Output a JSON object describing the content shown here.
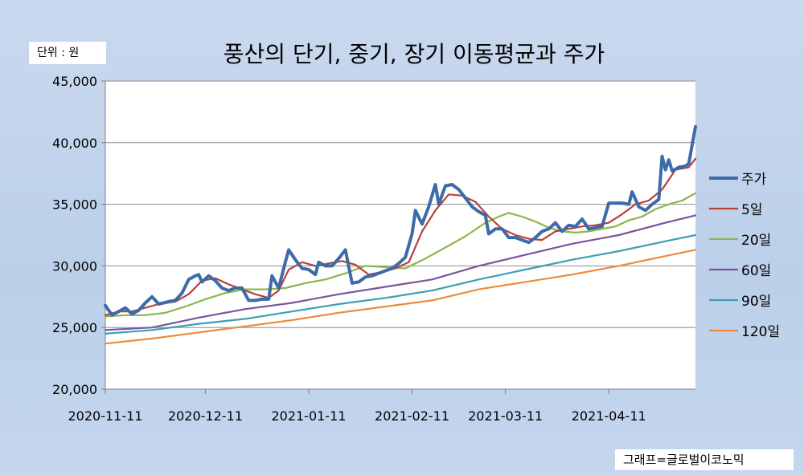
{
  "unit_label": "단위 : 원",
  "source_label": "그래프=글로벌이코노믹",
  "colors": {
    "price": "#3c6ba8",
    "ma5": "#b8403c",
    "ma20": "#8db54a",
    "ma60": "#7a55a0",
    "ma90": "#3d9fb4",
    "ma120": "#ec8b3a"
  },
  "chart_data": {
    "type": "line",
    "title": "풍산의 단기, 중기, 장기 이동평균과 주가",
    "xlabel": "",
    "ylabel": "",
    "ylim": [
      20000,
      45000
    ],
    "yticks": [
      20000,
      25000,
      30000,
      35000,
      40000,
      45000
    ],
    "ytick_labels": [
      "20,000",
      "25,000",
      "30,000",
      "35,000",
      "40,000",
      "45,000"
    ],
    "xticks": [
      "2020-11-11",
      "2020-12-11",
      "2021-01-11",
      "2021-02-11",
      "2021-03-11",
      "2021-04-11"
    ],
    "xlim": [
      "2020-11-11",
      "2021-05-07"
    ],
    "grid": "horizontal",
    "legend_position": "right",
    "series": [
      {
        "name": "주가",
        "key": "price",
        "points": [
          [
            "2020-11-11",
            26800
          ],
          [
            "2020-11-13",
            26000
          ],
          [
            "2020-11-15",
            26300
          ],
          [
            "2020-11-17",
            26600
          ],
          [
            "2020-11-19",
            26100
          ],
          [
            "2020-11-21",
            26400
          ],
          [
            "2020-11-23",
            27000
          ],
          [
            "2020-11-25",
            27500
          ],
          [
            "2020-11-27",
            26900
          ],
          [
            "2020-11-30",
            27100
          ],
          [
            "2020-12-02",
            27200
          ],
          [
            "2020-12-04",
            27800
          ],
          [
            "2020-12-06",
            28900
          ],
          [
            "2020-12-08",
            29200
          ],
          [
            "2020-12-09",
            29300
          ],
          [
            "2020-12-10",
            28700
          ],
          [
            "2020-12-12",
            29200
          ],
          [
            "2020-12-14",
            28800
          ],
          [
            "2020-12-16",
            28200
          ],
          [
            "2020-12-18",
            28000
          ],
          [
            "2020-12-20",
            28200
          ],
          [
            "2020-12-22",
            28200
          ],
          [
            "2020-12-24",
            27200
          ],
          [
            "2020-12-26",
            27200
          ],
          [
            "2020-12-28",
            27300
          ],
          [
            "2020-12-30",
            27300
          ],
          [
            "2020-12-31",
            29200
          ],
          [
            "2021-01-02",
            28200
          ],
          [
            "2021-01-04",
            30300
          ],
          [
            "2021-01-05",
            31300
          ],
          [
            "2021-01-07",
            30500
          ],
          [
            "2021-01-09",
            29800
          ],
          [
            "2021-01-11",
            29700
          ],
          [
            "2021-01-13",
            29300
          ],
          [
            "2021-01-14",
            30300
          ],
          [
            "2021-01-16",
            30000
          ],
          [
            "2021-01-18",
            30000
          ],
          [
            "2021-01-20",
            30600
          ],
          [
            "2021-01-22",
            31300
          ],
          [
            "2021-01-24",
            28600
          ],
          [
            "2021-01-26",
            28700
          ],
          [
            "2021-01-28",
            29100
          ],
          [
            "2021-01-30",
            29200
          ],
          [
            "2021-02-01",
            29400
          ],
          [
            "2021-02-03",
            29600
          ],
          [
            "2021-02-05",
            29800
          ],
          [
            "2021-02-07",
            30200
          ],
          [
            "2021-02-09",
            30700
          ],
          [
            "2021-02-11",
            32600
          ],
          [
            "2021-02-12",
            34500
          ],
          [
            "2021-02-14",
            33400
          ],
          [
            "2021-02-16",
            34800
          ],
          [
            "2021-02-18",
            36600
          ],
          [
            "2021-02-19",
            35000
          ],
          [
            "2021-02-21",
            36500
          ],
          [
            "2021-02-23",
            36600
          ],
          [
            "2021-02-25",
            36200
          ],
          [
            "2021-02-27",
            35500
          ],
          [
            "2021-03-01",
            34800
          ],
          [
            "2021-03-03",
            34400
          ],
          [
            "2021-03-05",
            34100
          ],
          [
            "2021-03-06",
            32600
          ],
          [
            "2021-03-08",
            33000
          ],
          [
            "2021-03-10",
            33000
          ],
          [
            "2021-03-12",
            32300
          ],
          [
            "2021-03-14",
            32300
          ],
          [
            "2021-03-16",
            32100
          ],
          [
            "2021-03-18",
            31900
          ],
          [
            "2021-03-20",
            32300
          ],
          [
            "2021-03-22",
            32800
          ],
          [
            "2021-03-24",
            33000
          ],
          [
            "2021-03-26",
            33500
          ],
          [
            "2021-03-28",
            32800
          ],
          [
            "2021-03-30",
            33300
          ],
          [
            "2021-04-01",
            33200
          ],
          [
            "2021-04-03",
            33800
          ],
          [
            "2021-04-05",
            33000
          ],
          [
            "2021-04-07",
            33100
          ],
          [
            "2021-04-09",
            33200
          ],
          [
            "2021-04-11",
            35100
          ],
          [
            "2021-04-13",
            35100
          ],
          [
            "2021-04-15",
            35100
          ],
          [
            "2021-04-17",
            35000
          ],
          [
            "2021-04-18",
            36000
          ],
          [
            "2021-04-20",
            34800
          ],
          [
            "2021-04-22",
            34500
          ],
          [
            "2021-04-24",
            35000
          ],
          [
            "2021-04-26",
            35400
          ],
          [
            "2021-04-27",
            38900
          ],
          [
            "2021-04-28",
            37800
          ],
          [
            "2021-04-29",
            38600
          ],
          [
            "2021-04-30",
            37700
          ],
          [
            "2021-05-02",
            38000
          ],
          [
            "2021-05-04",
            38100
          ],
          [
            "2021-05-05",
            38300
          ],
          [
            "2021-05-07",
            41300
          ]
        ]
      },
      {
        "name": "5일",
        "key": "ma5",
        "points": [
          [
            "2020-11-11",
            26000
          ],
          [
            "2020-11-15",
            26300
          ],
          [
            "2020-11-19",
            26300
          ],
          [
            "2020-11-23",
            26600
          ],
          [
            "2020-11-27",
            26900
          ],
          [
            "2020-12-02",
            27100
          ],
          [
            "2020-12-06",
            27700
          ],
          [
            "2020-12-10",
            28800
          ],
          [
            "2020-12-14",
            29000
          ],
          [
            "2020-12-18",
            28500
          ],
          [
            "2020-12-22",
            28100
          ],
          [
            "2020-12-26",
            27700
          ],
          [
            "2020-12-30",
            27400
          ],
          [
            "2021-01-02",
            28000
          ],
          [
            "2021-01-05",
            29700
          ],
          [
            "2021-01-09",
            30300
          ],
          [
            "2021-01-13",
            30000
          ],
          [
            "2021-01-17",
            30200
          ],
          [
            "2021-01-21",
            30400
          ],
          [
            "2021-01-25",
            30100
          ],
          [
            "2021-01-29",
            29300
          ],
          [
            "2021-02-02",
            29500
          ],
          [
            "2021-02-06",
            29800
          ],
          [
            "2021-02-10",
            30300
          ],
          [
            "2021-02-14",
            32800
          ],
          [
            "2021-02-18",
            34500
          ],
          [
            "2021-02-22",
            35800
          ],
          [
            "2021-02-26",
            35700
          ],
          [
            "2021-03-02",
            35200
          ],
          [
            "2021-03-06",
            34000
          ],
          [
            "2021-03-10",
            33000
          ],
          [
            "2021-03-14",
            32500
          ],
          [
            "2021-03-18",
            32200
          ],
          [
            "2021-03-22",
            32100
          ],
          [
            "2021-03-26",
            32800
          ],
          [
            "2021-03-30",
            33000
          ],
          [
            "2021-04-03",
            33200
          ],
          [
            "2021-04-07",
            33300
          ],
          [
            "2021-04-11",
            33500
          ],
          [
            "2021-04-15",
            34200
          ],
          [
            "2021-04-19",
            35000
          ],
          [
            "2021-04-23",
            35300
          ],
          [
            "2021-04-27",
            36200
          ],
          [
            "2021-05-01",
            37800
          ],
          [
            "2021-05-05",
            38000
          ],
          [
            "2021-05-07",
            38700
          ]
        ]
      },
      {
        "name": "20일",
        "key": "ma20",
        "points": [
          [
            "2020-11-11",
            25900
          ],
          [
            "2020-11-17",
            26000
          ],
          [
            "2020-11-23",
            26000
          ],
          [
            "2020-11-29",
            26200
          ],
          [
            "2020-12-05",
            26700
          ],
          [
            "2020-12-11",
            27300
          ],
          [
            "2020-12-17",
            27800
          ],
          [
            "2020-12-23",
            28100
          ],
          [
            "2020-12-29",
            28100
          ],
          [
            "2021-01-04",
            28200
          ],
          [
            "2021-01-10",
            28600
          ],
          [
            "2021-01-16",
            28900
          ],
          [
            "2021-01-22",
            29400
          ],
          [
            "2021-01-28",
            30000
          ],
          [
            "2021-02-03",
            29900
          ],
          [
            "2021-02-09",
            29800
          ],
          [
            "2021-02-15",
            30600
          ],
          [
            "2021-02-21",
            31500
          ],
          [
            "2021-02-27",
            32400
          ],
          [
            "2021-03-05",
            33500
          ],
          [
            "2021-03-09",
            34000
          ],
          [
            "2021-03-12",
            34300
          ],
          [
            "2021-03-16",
            34000
          ],
          [
            "2021-03-20",
            33600
          ],
          [
            "2021-03-24",
            33100
          ],
          [
            "2021-03-28",
            32800
          ],
          [
            "2021-04-01",
            32700
          ],
          [
            "2021-04-05",
            32800
          ],
          [
            "2021-04-09",
            33000
          ],
          [
            "2021-04-13",
            33200
          ],
          [
            "2021-04-17",
            33700
          ],
          [
            "2021-04-21",
            34000
          ],
          [
            "2021-04-25",
            34600
          ],
          [
            "2021-04-29",
            35000
          ],
          [
            "2021-05-03",
            35300
          ],
          [
            "2021-05-07",
            35900
          ]
        ]
      },
      {
        "name": "60일",
        "key": "ma60",
        "points": [
          [
            "2020-11-11",
            24800
          ],
          [
            "2020-11-25",
            25000
          ],
          [
            "2020-12-09",
            25800
          ],
          [
            "2020-12-23",
            26500
          ],
          [
            "2021-01-06",
            27000
          ],
          [
            "2021-01-20",
            27700
          ],
          [
            "2021-02-03",
            28300
          ],
          [
            "2021-02-17",
            28900
          ],
          [
            "2021-03-03",
            30000
          ],
          [
            "2021-03-17",
            30900
          ],
          [
            "2021-03-31",
            31800
          ],
          [
            "2021-04-14",
            32500
          ],
          [
            "2021-04-28",
            33500
          ],
          [
            "2021-05-07",
            34100
          ]
        ]
      },
      {
        "name": "90일",
        "key": "ma90",
        "points": [
          [
            "2020-11-11",
            24500
          ],
          [
            "2020-11-25",
            24800
          ],
          [
            "2020-12-09",
            25300
          ],
          [
            "2020-12-23",
            25700
          ],
          [
            "2021-01-06",
            26300
          ],
          [
            "2021-01-20",
            26900
          ],
          [
            "2021-02-03",
            27400
          ],
          [
            "2021-02-17",
            28000
          ],
          [
            "2021-03-03",
            28900
          ],
          [
            "2021-03-17",
            29700
          ],
          [
            "2021-03-31",
            30500
          ],
          [
            "2021-04-14",
            31200
          ],
          [
            "2021-04-28",
            32000
          ],
          [
            "2021-05-07",
            32500
          ]
        ]
      },
      {
        "name": "120일",
        "key": "ma120",
        "points": [
          [
            "2020-11-11",
            23700
          ],
          [
            "2020-11-25",
            24100
          ],
          [
            "2020-12-09",
            24600
          ],
          [
            "2020-12-23",
            25100
          ],
          [
            "2021-01-06",
            25600
          ],
          [
            "2021-01-20",
            26200
          ],
          [
            "2021-02-03",
            26700
          ],
          [
            "2021-02-17",
            27200
          ],
          [
            "2021-03-03",
            28100
          ],
          [
            "2021-03-17",
            28700
          ],
          [
            "2021-03-31",
            29300
          ],
          [
            "2021-04-14",
            30000
          ],
          [
            "2021-04-28",
            30800
          ],
          [
            "2021-05-07",
            31300
          ]
        ]
      }
    ]
  }
}
